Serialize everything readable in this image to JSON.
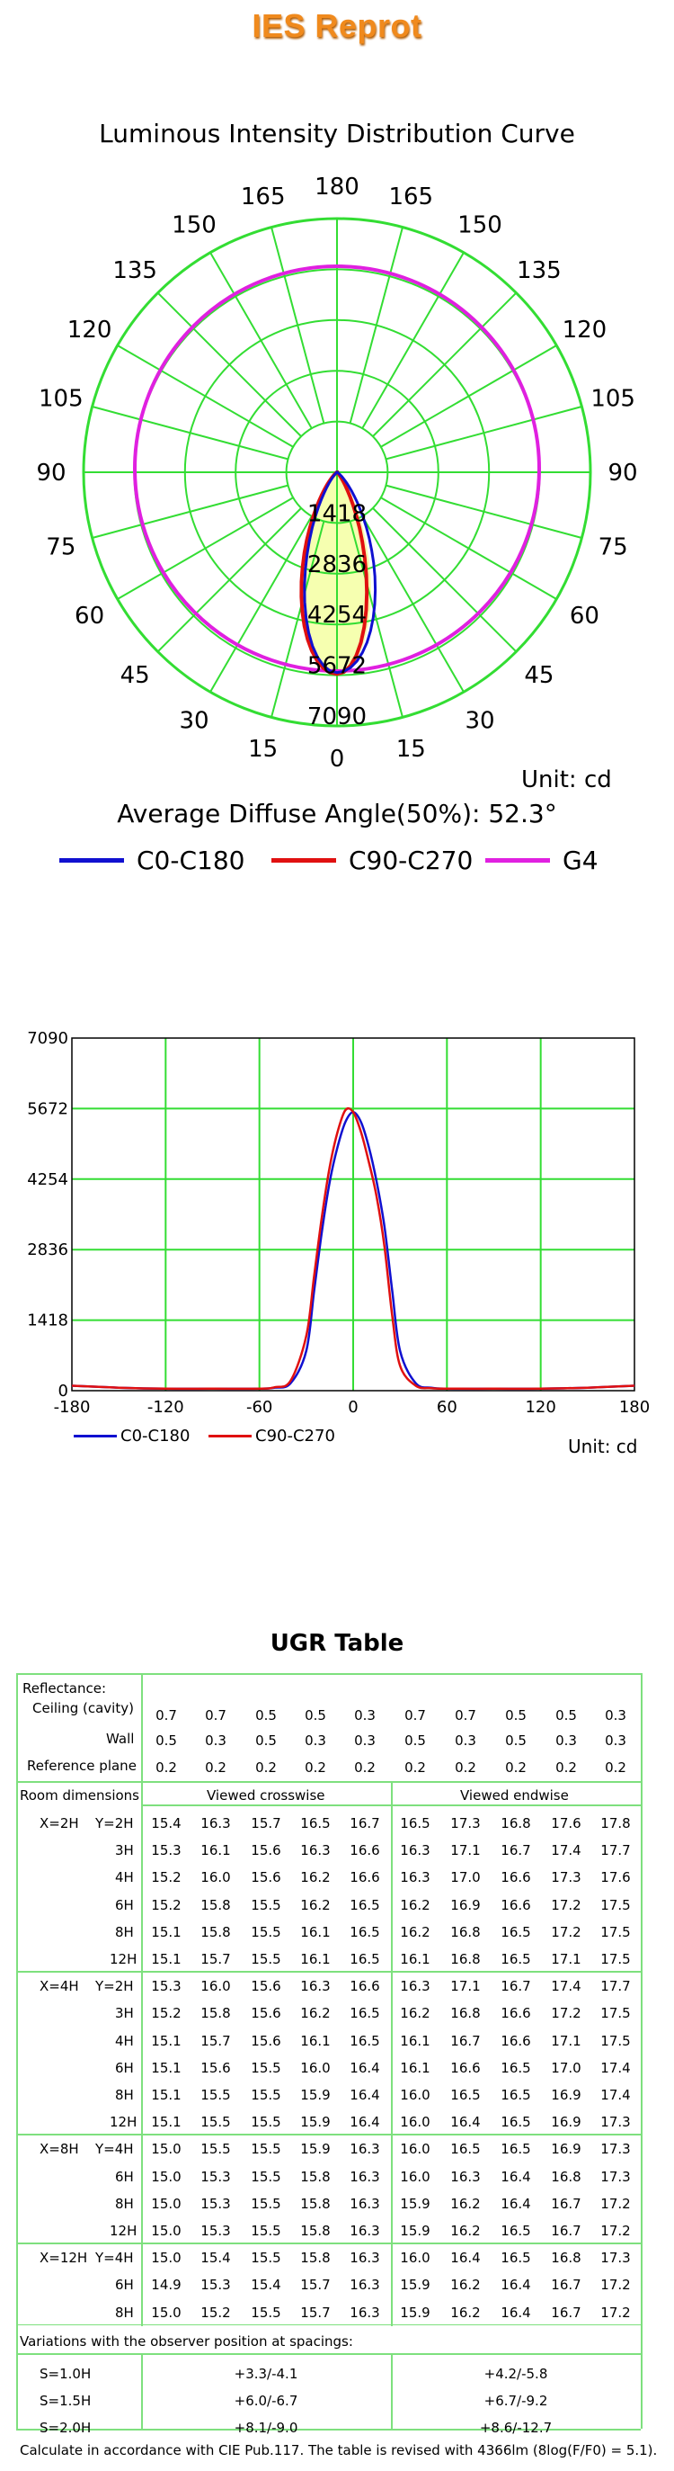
{
  "header": {
    "title": "IES Reprot"
  },
  "polar_chart": {
    "title": "Luminous Intensity Distribution Curve",
    "unit": "Unit: cd",
    "average_angle": "Average Diffuse Angle(50%): 52.3°",
    "angle_labels": {
      "left": [
        "180",
        "165",
        "150",
        "135",
        "120",
        "105",
        "90",
        "75",
        "60",
        "45",
        "30",
        "15",
        "0"
      ],
      "right": [
        "165",
        "150",
        "135",
        "120",
        "105",
        "90",
        "75",
        "60",
        "45",
        "30",
        "15"
      ]
    },
    "ring_labels": [
      "1418",
      "2836",
      "4254",
      "5672",
      "7090"
    ],
    "colors": {
      "c0": "#1010d0",
      "c90": "#e01010",
      "g4": "#e020e0",
      "grid": "#33dd33",
      "fill": "#f6ffb0"
    }
  },
  "legend": [
    {
      "label": "C0-C180",
      "color": "#1010d0"
    },
    {
      "label": "C90-C270",
      "color": "#e01010"
    },
    {
      "label": "G4",
      "color": "#e020e0"
    }
  ],
  "chart_data": {
    "type": "line",
    "x": [
      -180,
      -150,
      -120,
      -90,
      -60,
      -50,
      -40,
      -30,
      -25,
      -20,
      -15,
      -10,
      -5,
      0,
      5,
      10,
      15,
      20,
      25,
      30,
      40,
      50,
      60,
      90,
      120,
      150,
      180
    ],
    "series": [
      {
        "name": "C0-C180",
        "values": [
          100,
          60,
          40,
          40,
          40,
          60,
          150,
          800,
          2000,
          3200,
          4200,
          4900,
          5400,
          5600,
          5400,
          4900,
          4200,
          3300,
          2000,
          800,
          150,
          60,
          40,
          40,
          40,
          60,
          100
        ]
      },
      {
        "name": "C90-C270",
        "values": [
          100,
          60,
          40,
          40,
          40,
          70,
          200,
          1100,
          2300,
          3500,
          4500,
          5200,
          5640,
          5600,
          5200,
          4600,
          3900,
          2900,
          1500,
          500,
          100,
          50,
          40,
          40,
          40,
          60,
          100
        ]
      }
    ],
    "x_ticks": [
      "-180",
      "-120",
      "-60",
      "0",
      "60",
      "120",
      "180"
    ],
    "y_ticks": [
      "0",
      "1418",
      "2836",
      "4254",
      "5672",
      "7090"
    ],
    "xlim": [
      -180,
      180
    ],
    "ylim": [
      0,
      7090
    ],
    "grid": true,
    "unit": "Unit: cd",
    "legend": [
      "C0-C180",
      "C90-C270"
    ]
  },
  "ugr": {
    "title": "UGR Table",
    "reflectance_label": "Reflectance:",
    "ceiling_label": "Ceiling (cavity)",
    "wall_label": "Wall",
    "plane_label": "Reference plane",
    "ceiling": [
      "0.7",
      "0.7",
      "0.5",
      "0.5",
      "0.3",
      "0.7",
      "0.7",
      "0.5",
      "0.5",
      "0.3"
    ],
    "wall": [
      "0.5",
      "0.3",
      "0.5",
      "0.3",
      "0.3",
      "0.5",
      "0.3",
      "0.5",
      "0.3",
      "0.3"
    ],
    "plane": [
      "0.2",
      "0.2",
      "0.2",
      "0.2",
      "0.2",
      "0.2",
      "0.2",
      "0.2",
      "0.2",
      "0.2"
    ],
    "room_dim_label": "Room dimensions",
    "crosswise_label": "Viewed crosswise",
    "endwise_label": "Viewed endwise",
    "groups": [
      {
        "x": "X=2H",
        "rows": [
          {
            "y": "Y=2H",
            "v": [
              "15.4",
              "16.3",
              "15.7",
              "16.5",
              "16.7",
              "16.5",
              "17.3",
              "16.8",
              "17.6",
              "17.8"
            ]
          },
          {
            "y": "3H",
            "v": [
              "15.3",
              "16.1",
              "15.6",
              "16.3",
              "16.6",
              "16.3",
              "17.1",
              "16.7",
              "17.4",
              "17.7"
            ]
          },
          {
            "y": "4H",
            "v": [
              "15.2",
              "16.0",
              "15.6",
              "16.2",
              "16.6",
              "16.3",
              "17.0",
              "16.6",
              "17.3",
              "17.6"
            ]
          },
          {
            "y": "6H",
            "v": [
              "15.2",
              "15.8",
              "15.5",
              "16.2",
              "16.5",
              "16.2",
              "16.9",
              "16.6",
              "17.2",
              "17.5"
            ]
          },
          {
            "y": "8H",
            "v": [
              "15.1",
              "15.8",
              "15.5",
              "16.1",
              "16.5",
              "16.2",
              "16.8",
              "16.5",
              "17.2",
              "17.5"
            ]
          },
          {
            "y": "12H",
            "v": [
              "15.1",
              "15.7",
              "15.5",
              "16.1",
              "16.5",
              "16.1",
              "16.8",
              "16.5",
              "17.1",
              "17.5"
            ]
          }
        ]
      },
      {
        "x": "X=4H",
        "rows": [
          {
            "y": "Y=2H",
            "v": [
              "15.3",
              "16.0",
              "15.6",
              "16.3",
              "16.6",
              "16.3",
              "17.1",
              "16.7",
              "17.4",
              "17.7"
            ]
          },
          {
            "y": "3H",
            "v": [
              "15.2",
              "15.8",
              "15.6",
              "16.2",
              "16.5",
              "16.2",
              "16.8",
              "16.6",
              "17.2",
              "17.5"
            ]
          },
          {
            "y": "4H",
            "v": [
              "15.1",
              "15.7",
              "15.6",
              "16.1",
              "16.5",
              "16.1",
              "16.7",
              "16.6",
              "17.1",
              "17.5"
            ]
          },
          {
            "y": "6H",
            "v": [
              "15.1",
              "15.6",
              "15.5",
              "16.0",
              "16.4",
              "16.1",
              "16.6",
              "16.5",
              "17.0",
              "17.4"
            ]
          },
          {
            "y": "8H",
            "v": [
              "15.1",
              "15.5",
              "15.5",
              "15.9",
              "16.4",
              "16.0",
              "16.5",
              "16.5",
              "16.9",
              "17.4"
            ]
          },
          {
            "y": "12H",
            "v": [
              "15.1",
              "15.5",
              "15.5",
              "15.9",
              "16.4",
              "16.0",
              "16.4",
              "16.5",
              "16.9",
              "17.3"
            ]
          }
        ]
      },
      {
        "x": "X=8H",
        "rows": [
          {
            "y": "Y=4H",
            "v": [
              "15.0",
              "15.5",
              "15.5",
              "15.9",
              "16.3",
              "16.0",
              "16.5",
              "16.5",
              "16.9",
              "17.3"
            ]
          },
          {
            "y": "6H",
            "v": [
              "15.0",
              "15.3",
              "15.5",
              "15.8",
              "16.3",
              "16.0",
              "16.3",
              "16.4",
              "16.8",
              "17.3"
            ]
          },
          {
            "y": "8H",
            "v": [
              "15.0",
              "15.3",
              "15.5",
              "15.8",
              "16.3",
              "15.9",
              "16.2",
              "16.4",
              "16.7",
              "17.2"
            ]
          },
          {
            "y": "12H",
            "v": [
              "15.0",
              "15.3",
              "15.5",
              "15.8",
              "16.3",
              "15.9",
              "16.2",
              "16.5",
              "16.7",
              "17.2"
            ]
          }
        ]
      },
      {
        "x": "X=12H",
        "rows": [
          {
            "y": "Y=4H",
            "v": [
              "15.0",
              "15.4",
              "15.5",
              "15.8",
              "16.3",
              "16.0",
              "16.4",
              "16.5",
              "16.8",
              "17.3"
            ]
          },
          {
            "y": "6H",
            "v": [
              "14.9",
              "15.3",
              "15.4",
              "15.7",
              "16.3",
              "15.9",
              "16.2",
              "16.4",
              "16.7",
              "17.2"
            ]
          },
          {
            "y": "8H",
            "v": [
              "15.0",
              "15.2",
              "15.5",
              "15.7",
              "16.3",
              "15.9",
              "16.2",
              "16.4",
              "16.7",
              "17.2"
            ]
          }
        ]
      }
    ],
    "variations_label": "Variations with the observer position at spacings:",
    "variations": [
      {
        "s": "S=1.0H",
        "cross": "+3.3/-4.1",
        "end": "+4.2/-5.8"
      },
      {
        "s": "S=1.5H",
        "cross": "+6.0/-6.7",
        "end": "+6.7/-9.2"
      },
      {
        "s": "S=2.0H",
        "cross": "+8.1/-9.0",
        "end": "+8.6/-12.7"
      }
    ],
    "footnote": "Calculate in accordance with CIE Pub.117. The table is revised with 4366lm (8log(F/F0) = 5.1)."
  }
}
